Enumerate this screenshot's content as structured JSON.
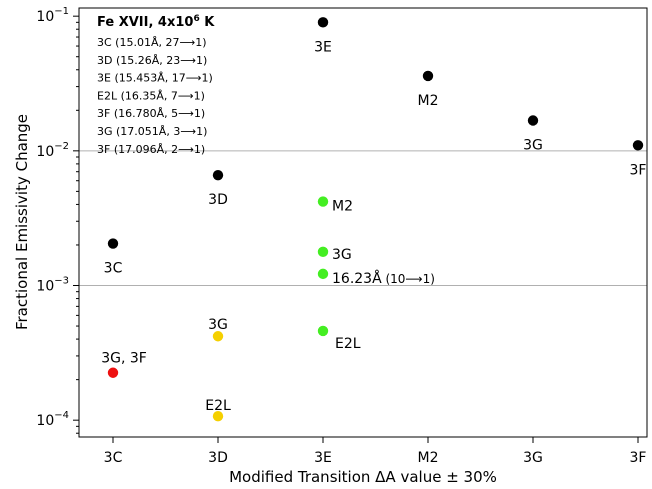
{
  "chart_data": {
    "type": "scatter",
    "title": "",
    "xlabel": "Modified Transition ΔA value ± 30%",
    "ylabel": "Fractional Emissivity Change",
    "y_scale": "log",
    "ylim": [
      7.5e-05,
      0.115
    ],
    "categories": [
      "3C",
      "3D",
      "3E",
      "M2",
      "3G",
      "3F"
    ],
    "y_tick_labels": [
      {
        "value": 0.1,
        "base": "10",
        "exp": "−1"
      },
      {
        "value": 0.01,
        "base": "10",
        "exp": "−2"
      },
      {
        "value": 0.001,
        "base": "10",
        "exp": "−3"
      },
      {
        "value": 0.0001,
        "base": "10",
        "exp": "−4"
      }
    ],
    "gridlines_y": [
      0.01,
      0.001
    ],
    "legend": {
      "title_main": "Fe XVII, 4x10",
      "title_exp": "6",
      "title_unit": " K",
      "lines": [
        "3C (15.01Å, 27⟶1)",
        "3D (15.26Å, 23⟶1)",
        "3E (15.453Å, 17⟶1)",
        "E2L (16.35Å, 7⟶1)",
        "3F (16.780Å, 5⟶1)",
        "3G (17.051Å, 3⟶1)",
        "3F (17.096Å, 2⟶1)"
      ]
    },
    "series": [
      {
        "color": "#000000",
        "points": [
          {
            "x": "3C",
            "y": 0.00205,
            "label": "3C"
          },
          {
            "x": "3D",
            "y": 0.0066,
            "label": "3D"
          },
          {
            "x": "3E",
            "y": 0.09,
            "label": "3E"
          },
          {
            "x": "M2",
            "y": 0.036,
            "label": "M2"
          },
          {
            "x": "3G",
            "y": 0.0168,
            "label": "3G"
          },
          {
            "x": "3F",
            "y": 0.011,
            "label": "3F"
          }
        ]
      },
      {
        "color": "#44ee22",
        "points": [
          {
            "x": "3E",
            "y": 0.0042,
            "label": "M2"
          },
          {
            "x": "3E",
            "y": 0.00178,
            "label": "3G"
          },
          {
            "x": "3E",
            "y": 0.00122,
            "label": "16.23Å",
            "label_suffix": "(10⟶1)"
          },
          {
            "x": "3E",
            "y": 0.00046,
            "label": "E2L"
          }
        ]
      },
      {
        "color": "#f5d000",
        "points": [
          {
            "x": "3D",
            "y": 0.00042,
            "label": "3G"
          },
          {
            "x": "3D",
            "y": 0.000107,
            "label": "E2L"
          }
        ]
      },
      {
        "color": "#ee1111",
        "points": [
          {
            "x": "3C",
            "y": 0.000225,
            "label": "3G, 3F"
          }
        ]
      }
    ]
  }
}
